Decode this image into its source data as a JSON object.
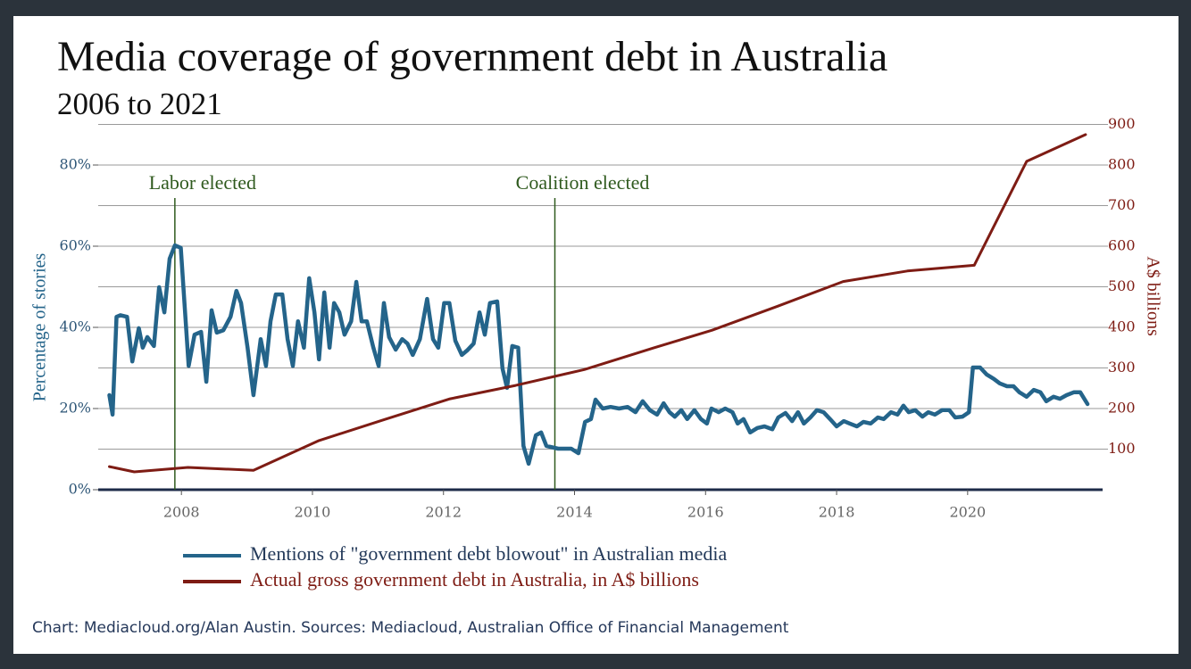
{
  "chart_data": {
    "type": "line",
    "title": "Media coverage of government debt in Australia",
    "subtitle": "2006 to 2021",
    "ylabel": "Percentage of stories",
    "y2label": "A$ billions",
    "source": "Chart: Mediacloud.org/Alan Austin. Sources: Mediacloud, Australian Office of Financial Management",
    "xlim": [
      2006.73,
      2022.06
    ],
    "xticks": [
      2008,
      2010,
      2012,
      2014,
      2016,
      2018,
      2020
    ],
    "ylim": [
      0,
      90
    ],
    "yticks": [
      {
        "value": 0,
        "label": "0%"
      },
      {
        "value": 20,
        "label": "20%"
      },
      {
        "value": 40,
        "label": "40%"
      },
      {
        "value": 60,
        "label": "60%"
      },
      {
        "value": 80,
        "label": "80%"
      }
    ],
    "y2lim": [
      0,
      900
    ],
    "y2ticks": [
      100,
      200,
      300,
      400,
      500,
      600,
      700,
      800,
      900
    ],
    "grid": true,
    "annotations": [
      {
        "text": "Labor elected",
        "x": 2007.9
      },
      {
        "text": "Coalition elected",
        "x": 2013.7
      }
    ],
    "series": [
      {
        "name": "Mentions of \"government debt blowout\" in Australian media",
        "color": "#24648a",
        "axis": "y",
        "x": [
          2006.9,
          2006.95,
          2007.01,
          2007.07,
          2007.17,
          2007.25,
          2007.35,
          2007.41,
          2007.48,
          2007.58,
          2007.66,
          2007.74,
          2007.82,
          2007.9,
          2007.99,
          2008.11,
          2008.2,
          2008.3,
          2008.38,
          2008.46,
          2008.54,
          2008.64,
          2008.75,
          2008.84,
          2008.91,
          2009.01,
          2009.1,
          2009.21,
          2009.29,
          2009.36,
          2009.44,
          2009.54,
          2009.62,
          2009.7,
          2009.78,
          2009.87,
          2009.95,
          2010.03,
          2010.1,
          2010.18,
          2010.26,
          2010.33,
          2010.41,
          2010.49,
          2010.59,
          2010.67,
          2010.75,
          2010.83,
          2010.93,
          2011.01,
          2011.09,
          2011.17,
          2011.27,
          2011.37,
          2011.45,
          2011.53,
          2011.64,
          2011.75,
          2011.84,
          2011.92,
          2012.01,
          2012.09,
          2012.18,
          2012.28,
          2012.36,
          2012.46,
          2012.55,
          2012.63,
          2012.71,
          2012.82,
          2012.9,
          2012.97,
          2013.05,
          2013.14,
          2013.22,
          2013.3,
          2013.41,
          2013.49,
          2013.57,
          2013.75,
          2013.95,
          2014.06,
          2014.16,
          2014.25,
          2014.32,
          2014.43,
          2014.55,
          2014.68,
          2014.81,
          2014.93,
          2015.04,
          2015.15,
          2015.26,
          2015.36,
          2015.45,
          2015.53,
          2015.63,
          2015.72,
          2015.83,
          2015.93,
          2016.02,
          2016.09,
          2016.2,
          2016.3,
          2016.41,
          2016.49,
          2016.58,
          2016.68,
          2016.79,
          2016.9,
          2017.02,
          2017.11,
          2017.22,
          2017.32,
          2017.41,
          2017.5,
          2017.6,
          2017.7,
          2017.8,
          2017.9,
          2018.0,
          2018.11,
          2018.2,
          2018.31,
          2018.41,
          2018.52,
          2018.63,
          2018.72,
          2018.83,
          2018.93,
          2019.02,
          2019.1,
          2019.2,
          2019.31,
          2019.4,
          2019.5,
          2019.61,
          2019.72,
          2019.81,
          2019.92,
          2020.02,
          2020.08,
          2020.19,
          2020.29,
          2020.4,
          2020.49,
          2020.6,
          2020.7,
          2020.79,
          2020.9,
          2021.01,
          2021.11,
          2021.2,
          2021.31,
          2021.41,
          2021.51,
          2021.62,
          2021.72,
          2021.83
        ],
        "values": [
          23.3,
          18.5,
          42.6,
          43,
          42.6,
          31.6,
          39.8,
          35,
          37.6,
          35.4,
          49.9,
          43.7,
          56.9,
          60.2,
          59.6,
          30.5,
          38.2,
          38.9,
          26.6,
          44.2,
          38.7,
          39.3,
          42.6,
          49,
          46,
          35,
          23.3,
          37.1,
          30.5,
          41.5,
          48.1,
          48.1,
          37.1,
          30.5,
          41.5,
          35,
          52.1,
          43.7,
          32.1,
          48.6,
          35,
          46,
          43.7,
          38.2,
          41.5,
          51.2,
          41.5,
          41.5,
          35,
          30.5,
          46,
          37.6,
          34.5,
          37.1,
          36,
          33.2,
          37.1,
          47,
          37.1,
          35,
          46,
          46,
          36.7,
          33.2,
          34.3,
          36,
          43.7,
          38.2,
          46,
          46.4,
          29.9,
          25.1,
          35.4,
          35,
          10.8,
          6.4,
          13.4,
          14.1,
          10.8,
          10.1,
          10.1,
          9,
          16.7,
          17.4,
          22.2,
          20,
          20.4,
          20,
          20.4,
          19.1,
          21.8,
          19.6,
          18.5,
          21.3,
          19.1,
          18,
          19.6,
          17.4,
          19.6,
          17.4,
          16.3,
          20,
          19.1,
          20,
          19.1,
          16.3,
          17.4,
          14.1,
          15.2,
          15.6,
          14.9,
          17.8,
          18.9,
          16.9,
          19.1,
          16.3,
          17.8,
          19.6,
          19.1,
          17.4,
          15.6,
          16.9,
          16.3,
          15.6,
          16.7,
          16.3,
          17.8,
          17.4,
          19.1,
          18.5,
          20.7,
          19.1,
          19.6,
          18,
          19.1,
          18.5,
          19.6,
          19.6,
          17.8,
          18,
          19.1,
          30.1,
          30.1,
          28.4,
          27.3,
          26.2,
          25.5,
          25.5,
          24,
          22.9,
          24.6,
          24,
          21.8,
          22.9,
          22.4,
          23.3,
          24,
          24,
          21.1
        ]
      },
      {
        "name": "Actual gross government debt in Australia, in A$ billions",
        "color": "#7e1c14",
        "axis": "y2",
        "x": [
          2006.9,
          2007.28,
          2008.1,
          2009.1,
          2010.1,
          2011.1,
          2012.1,
          2013.1,
          2014.15,
          2015.2,
          2016.1,
          2017.1,
          2018.1,
          2019.08,
          2020.1,
          2020.9,
          2021.8
        ],
        "values": [
          57,
          44,
          55,
          48,
          121,
          173,
          224,
          257,
          296,
          349,
          393,
          452,
          513,
          539,
          553,
          809,
          875
        ]
      }
    ]
  }
}
